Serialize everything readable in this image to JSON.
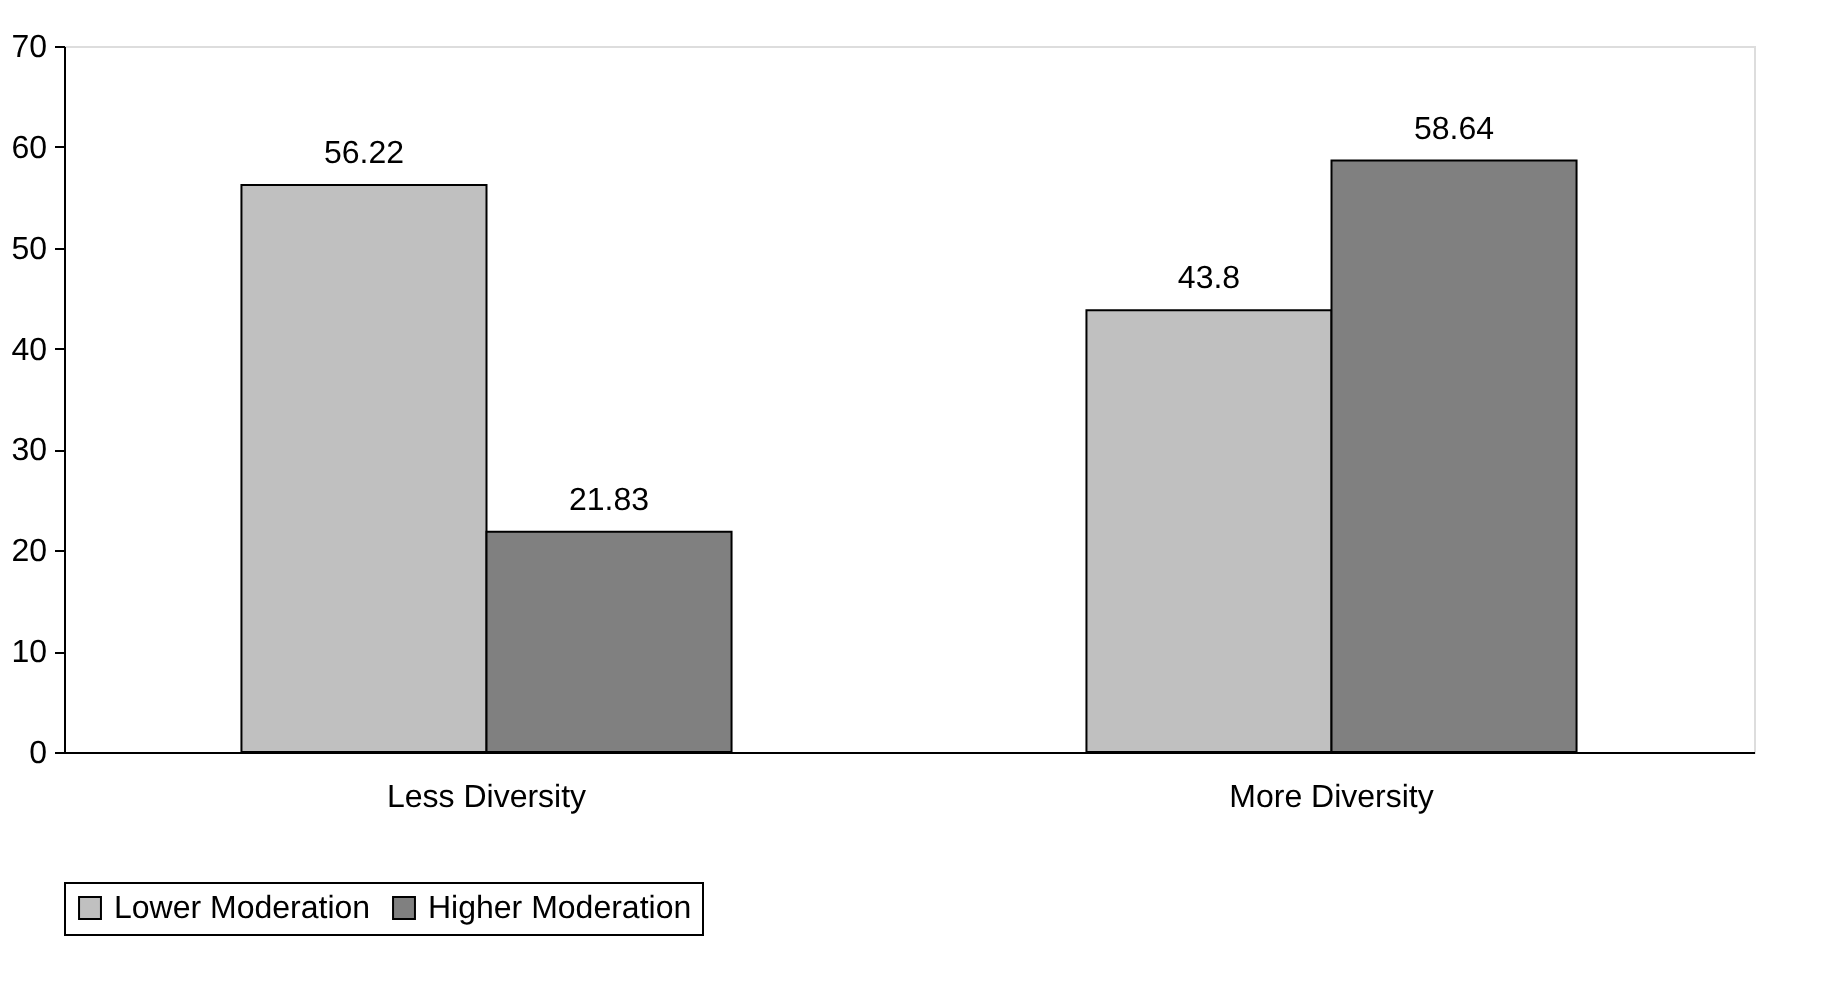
{
  "chart_data": {
    "type": "bar",
    "categories": [
      "Less Diversity",
      "More Diversity"
    ],
    "series": [
      {
        "name": "Lower Moderation",
        "color": "#c0c0c0",
        "values": [
          56.22,
          43.8
        ]
      },
      {
        "name": "Higher Moderation",
        "color": "#808080",
        "values": [
          21.83,
          58.64
        ]
      }
    ],
    "ylim": [
      0,
      70
    ],
    "yticks": [
      0,
      10,
      20,
      30,
      40,
      50,
      60,
      70
    ],
    "grid": false,
    "legend": "bottom",
    "data_labels": true
  }
}
